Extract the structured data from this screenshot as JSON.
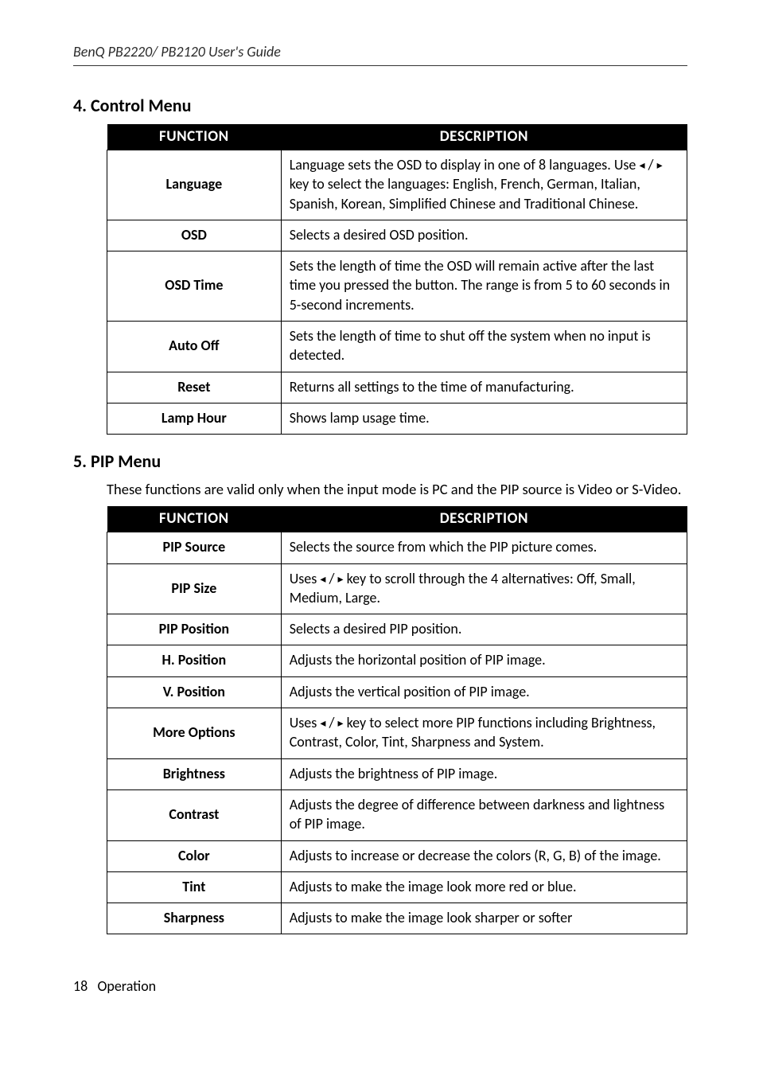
{
  "header": {
    "guide_title": "BenQ PB2220/ PB2120 User's Guide"
  },
  "section4": {
    "heading": "4. Control Menu",
    "columns": {
      "func": "FUNCTION",
      "desc": "DESCRIPTION"
    },
    "rows": [
      {
        "func": "Language",
        "desc_pre": "Language sets the OSD to display in one of 8 languages. Use ",
        "arrow_l": "◂",
        "sep": " / ",
        "arrow_r": "▸",
        "desc_post": " key to select the languages: English, French, German, Italian, Spanish, Korean, Simplified Chinese and Traditional Chinese."
      },
      {
        "func": "OSD",
        "desc": "Selects a desired OSD position."
      },
      {
        "func": "OSD Time",
        "desc": "Sets the length of time the OSD will remain active after the last time you pressed the  button. The range is from 5 to 60 seconds in 5-second increments."
      },
      {
        "func": "Auto Off",
        "desc": "Sets the length of time to shut off the system when no input is detected."
      },
      {
        "func": "Reset",
        "desc": "Returns all settings to the time of manufacturing."
      },
      {
        "func": "Lamp Hour",
        "desc": "Shows lamp usage time."
      }
    ]
  },
  "section5": {
    "heading": "5. PIP Menu",
    "note": "These functions are valid only when the input mode is PC and the PIP source is Video or S-Video.",
    "columns": {
      "func": "FUNCTION",
      "desc": "DESCRIPTION"
    },
    "rows": [
      {
        "func": "PIP Source",
        "desc": "Selects the source from which the PIP picture comes."
      },
      {
        "func": "PIP Size",
        "desc_pre": "Uses ",
        "arrow_l": "◂",
        "sep": " / ",
        "arrow_r": "▸",
        "desc_post": " key to scroll through the 4 alternatives: Off, Small, Medium, Large."
      },
      {
        "func": "PIP Position",
        "desc": "Selects a desired PIP position."
      },
      {
        "func": "H. Position",
        "desc": "Adjusts the horizontal position of PIP image."
      },
      {
        "func": "V. Position",
        "desc": "Adjusts the vertical position of PIP image."
      },
      {
        "func": "More Options",
        "desc_pre": "Uses ",
        "arrow_l": "◂",
        "sep": " / ",
        "arrow_r": "▸",
        "desc_post": " key to select more PIP functions including Brightness, Contrast, Color, Tint, Sharpness and System."
      },
      {
        "func": "Brightness",
        "desc": "Adjusts the brightness of PIP image."
      },
      {
        "func": "Contrast",
        "desc": "Adjusts the degree of difference between darkness and lightness of PIP image."
      },
      {
        "func": "Color",
        "desc": "Adjusts to increase or decrease the colors (R, G, B) of the image."
      },
      {
        "func": "Tint",
        "desc": "Adjusts to make the image look more red or blue."
      },
      {
        "func": "Sharpness",
        "desc": "Adjusts to make the image look sharper or softer"
      }
    ]
  },
  "footer": {
    "page_num": "18",
    "section_name": "Operation"
  }
}
